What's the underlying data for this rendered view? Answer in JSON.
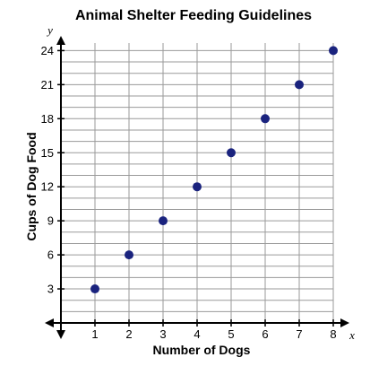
{
  "chart_data": {
    "type": "scatter",
    "title": "Animal Shelter Feeding Guidelines",
    "xlabel": "Number of Dogs",
    "ylabel": "Cups of Dog Food",
    "x_axis_var": "x",
    "y_axis_var": "y",
    "xlim": [
      0,
      8
    ],
    "ylim": [
      0,
      24
    ],
    "x_ticks": [
      1,
      2,
      3,
      4,
      5,
      6,
      7,
      8
    ],
    "y_ticks": [
      3,
      6,
      9,
      12,
      15,
      18,
      21,
      24
    ],
    "grid": true,
    "point_color": "#1a237e",
    "points": [
      {
        "x": 1,
        "y": 3
      },
      {
        "x": 2,
        "y": 6
      },
      {
        "x": 3,
        "y": 9
      },
      {
        "x": 4,
        "y": 12
      },
      {
        "x": 5,
        "y": 15
      },
      {
        "x": 6,
        "y": 18
      },
      {
        "x": 7,
        "y": 21
      },
      {
        "x": 8,
        "y": 24
      }
    ]
  }
}
